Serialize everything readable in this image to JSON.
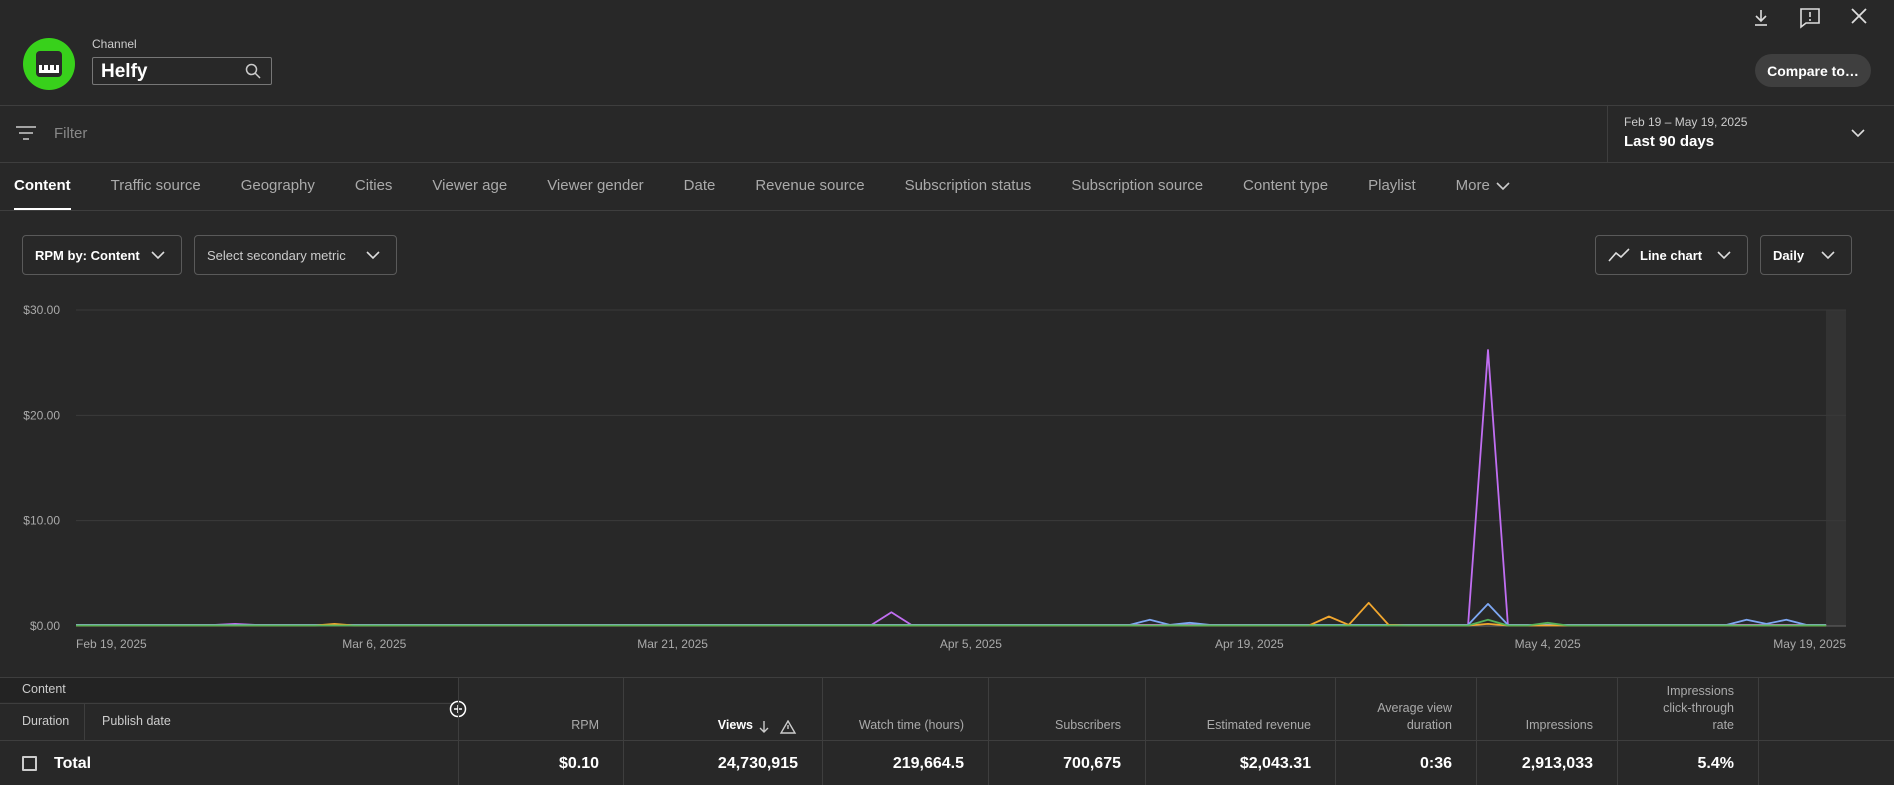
{
  "header": {
    "channel_label": "Channel",
    "channel_name": "Helfy",
    "compare_button": "Compare to…"
  },
  "filter": {
    "placeholder": "Filter",
    "date_range": "Feb 19 – May 19, 2025",
    "period": "Last 90 days"
  },
  "tabs": [
    "Content",
    "Traffic source",
    "Geography",
    "Cities",
    "Viewer age",
    "Viewer gender",
    "Date",
    "Revenue source",
    "Subscription status",
    "Subscription source",
    "Content type",
    "Playlist",
    "More"
  ],
  "controls": {
    "metric": "RPM by: Content",
    "secondary_metric": "Select secondary metric",
    "chart_type": "Line chart",
    "interval": "Daily"
  },
  "chart_data": {
    "type": "line",
    "categories": [
      "Feb 19, 2025",
      null,
      null,
      null,
      null,
      null,
      null,
      null,
      null,
      null,
      null,
      null,
      null,
      null,
      null,
      "Mar 6, 2025",
      null,
      null,
      null,
      null,
      null,
      null,
      null,
      null,
      null,
      null,
      null,
      null,
      null,
      null,
      "Mar 21, 2025",
      null,
      null,
      null,
      null,
      null,
      null,
      null,
      null,
      null,
      null,
      null,
      null,
      null,
      null,
      "Apr 5, 2025",
      null,
      null,
      null,
      null,
      null,
      null,
      null,
      null,
      null,
      null,
      null,
      null,
      null,
      "Apr 19, 2025",
      null,
      null,
      null,
      null,
      null,
      null,
      null,
      null,
      null,
      null,
      null,
      null,
      null,
      null,
      "May 4, 2025",
      null,
      null,
      null,
      null,
      null,
      null,
      null,
      null,
      null,
      null,
      null,
      null,
      null,
      null,
      "May 19, 2025"
    ],
    "series": [
      {
        "color": "#c16ef2",
        "values": [
          0.1,
          0.1,
          0.1,
          0.1,
          0.1,
          0.1,
          0.1,
          0.1,
          0.2,
          0.1,
          0.1,
          0.1,
          0.1,
          0.1,
          0.1,
          0.1,
          0.1,
          0.1,
          0.1,
          0.1,
          0.1,
          0.1,
          0.1,
          0.1,
          0.1,
          0.1,
          0.1,
          0.1,
          0.1,
          0.1,
          0.1,
          0.1,
          0.1,
          0.1,
          0.1,
          0.1,
          0.1,
          0.1,
          0.1,
          0.1,
          0.1,
          1.3,
          0.1,
          0.1,
          0.1,
          0.1,
          0.1,
          0.1,
          0.1,
          0.1,
          0.1,
          0.1,
          0.1,
          0.1,
          0.1,
          0.1,
          0.1,
          0.1,
          0.1,
          0.1,
          0.1,
          0.1,
          0.1,
          0.1,
          0.1,
          0.1,
          0.1,
          0.1,
          0.1,
          0.1,
          0.1,
          26.2,
          0.1,
          0.1,
          0.1,
          0.1,
          0.1,
          0.1,
          0.1,
          0.1,
          0.1,
          0.1,
          0.1,
          0.1,
          0.1,
          0.1,
          0.1,
          0.1,
          0.1,
          null
        ]
      },
      {
        "color": "#7ea8f4",
        "values": [
          0.1,
          0.1,
          0.1,
          0.1,
          0.1,
          0.1,
          0.1,
          0.1,
          0.1,
          0.1,
          0.1,
          0.1,
          0.1,
          0.1,
          0.1,
          0.1,
          0.1,
          0.1,
          0.1,
          0.1,
          0.1,
          0.1,
          0.1,
          0.1,
          0.1,
          0.1,
          0.1,
          0.1,
          0.1,
          0.1,
          0.1,
          0.1,
          0.1,
          0.1,
          0.1,
          0.1,
          0.1,
          0.1,
          0.1,
          0.1,
          0.1,
          0.1,
          0.1,
          0.1,
          0.1,
          0.1,
          0.1,
          0.1,
          0.1,
          0.1,
          0.1,
          0.1,
          0.1,
          0.1,
          0.6,
          0.1,
          0.3,
          0.1,
          0.1,
          0.1,
          0.1,
          0.1,
          0.1,
          0.1,
          0.1,
          0.1,
          0.1,
          0.1,
          0.1,
          0.1,
          0.1,
          2.1,
          0.1,
          0.1,
          0.1,
          0.1,
          0.1,
          0.1,
          0.1,
          0.1,
          0.1,
          0.1,
          0.1,
          0.1,
          0.6,
          0.2,
          0.6,
          0.1,
          0.1,
          null
        ]
      },
      {
        "color": "#f2a72e",
        "values": [
          0.05,
          0.05,
          0.05,
          0.05,
          0.05,
          0.05,
          0.05,
          0.05,
          0.05,
          0.05,
          0.05,
          0.05,
          0.05,
          0.2,
          0.05,
          0.05,
          0.05,
          0.05,
          0.05,
          0.05,
          0.05,
          0.05,
          0.05,
          0.05,
          0.05,
          0.05,
          0.05,
          0.05,
          0.05,
          0.05,
          0.05,
          0.05,
          0.05,
          0.05,
          0.05,
          0.05,
          0.05,
          0.05,
          0.05,
          0.05,
          0.05,
          0.05,
          0.05,
          0.05,
          0.05,
          0.05,
          0.05,
          0.05,
          0.05,
          0.05,
          0.05,
          0.05,
          0.05,
          0.05,
          0.05,
          0.05,
          0.05,
          0.05,
          0.05,
          0.05,
          0.05,
          0.05,
          0.05,
          0.9,
          0.1,
          2.2,
          0.1,
          0.05,
          0.05,
          0.05,
          0.05,
          0.2,
          0.05,
          0.05,
          0.05,
          0.05,
          0.05,
          0.05,
          0.05,
          0.05,
          0.05,
          0.05,
          0.05,
          0.05,
          0.05,
          0.05,
          0.05,
          0.05,
          0.05,
          null
        ]
      },
      {
        "color": "#57b35a",
        "values": [
          0.05,
          0.05,
          0.05,
          0.05,
          0.05,
          0.05,
          0.05,
          0.05,
          0.05,
          0.05,
          0.05,
          0.05,
          0.05,
          0.05,
          0.05,
          0.05,
          0.05,
          0.05,
          0.05,
          0.05,
          0.05,
          0.05,
          0.05,
          0.05,
          0.05,
          0.05,
          0.05,
          0.05,
          0.05,
          0.05,
          0.05,
          0.05,
          0.05,
          0.05,
          0.05,
          0.05,
          0.05,
          0.05,
          0.05,
          0.05,
          0.05,
          0.05,
          0.05,
          0.05,
          0.05,
          0.05,
          0.05,
          0.05,
          0.05,
          0.05,
          0.05,
          0.05,
          0.05,
          0.05,
          0.05,
          0.05,
          0.05,
          0.05,
          0.05,
          0.05,
          0.05,
          0.05,
          0.05,
          0.05,
          0.05,
          0.05,
          0.05,
          0.05,
          0.05,
          0.05,
          0.05,
          0.6,
          0.05,
          0.05,
          0.3,
          0.05,
          0.05,
          0.05,
          0.05,
          0.05,
          0.05,
          0.05,
          0.05,
          0.05,
          0.05,
          0.05,
          0.05,
          0.05,
          0.05,
          null
        ]
      }
    ],
    "ylim": [
      0,
      30
    ],
    "yticks": [
      {
        "value": 0,
        "label": "$0.00"
      },
      {
        "value": 10,
        "label": "$10.00"
      },
      {
        "value": 20,
        "label": "$20.00"
      },
      {
        "value": 30,
        "label": "$30.00"
      }
    ],
    "grid": true
  },
  "table": {
    "group_label": "Content",
    "sub_labels": [
      "Duration",
      "Publish date"
    ],
    "columns": [
      "RPM",
      "Views",
      "Watch time (hours)",
      "Subscribers",
      "Estimated revenue",
      "Average view duration",
      "Impressions",
      "Impressions click-through rate"
    ],
    "total": {
      "label": "Total",
      "values": [
        "$0.10",
        "24,730,915",
        "219,664.5",
        "700,675",
        "$2,043.31",
        "0:36",
        "2,913,033",
        "5.4%"
      ]
    }
  }
}
